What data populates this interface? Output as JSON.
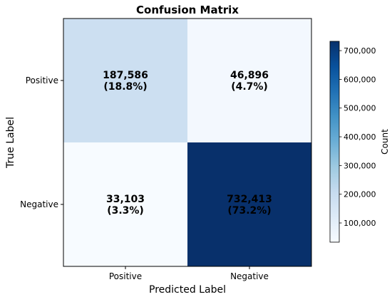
{
  "chart_data": {
    "type": "heatmap",
    "title": "Confusion Matrix",
    "xlabel": "Predicted Label",
    "ylabel": "True Label",
    "x_categories": [
      "Positive",
      "Negative"
    ],
    "y_categories": [
      "Positive",
      "Negative"
    ],
    "values": [
      [
        187586,
        46896
      ],
      [
        33103,
        732413
      ]
    ],
    "cell_labels": [
      [
        {
          "count": "187,586",
          "percent": "(18.8%)"
        },
        {
          "count": "46,896",
          "percent": "(4.7%)"
        }
      ],
      [
        {
          "count": "33,103",
          "percent": "(3.3%)"
        },
        {
          "count": "732,413",
          "percent": "(73.2%)"
        }
      ]
    ],
    "colormap": "Blues",
    "colorbar": {
      "label": "Count",
      "range": [
        33103,
        732413
      ],
      "ticks": [
        100000,
        200000,
        300000,
        400000,
        500000,
        600000,
        700000
      ],
      "tick_labels": [
        "100,000",
        "200,000",
        "300,000",
        "400,000",
        "500,000",
        "600,000",
        "700,000"
      ]
    },
    "grid": false
  }
}
